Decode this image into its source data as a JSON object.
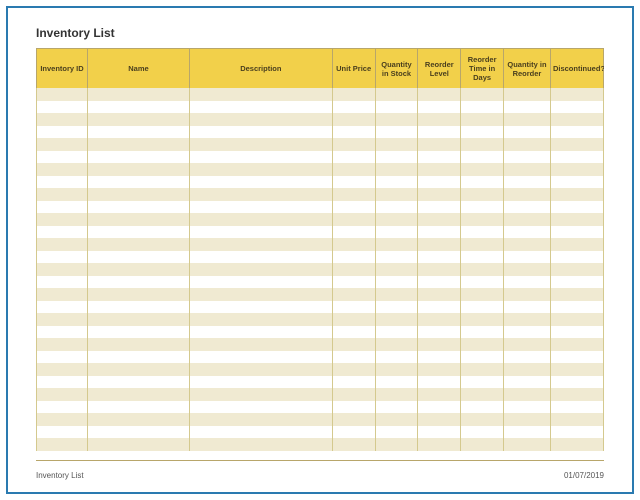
{
  "title": "Inventory List",
  "table": {
    "header_bg": "#f2d04a",
    "row_alt_bg": "#f0ead2",
    "row_bg": "#ffffff",
    "columns": [
      {
        "label": "Inventory ID",
        "width": 50
      },
      {
        "label": "Name",
        "width": 100
      },
      {
        "label": "Description",
        "width": 140
      },
      {
        "label": "Unit Price",
        "width": 42
      },
      {
        "label": "Quantity in Stock",
        "width": 42
      },
      {
        "label": "Reorder Level",
        "width": 42
      },
      {
        "label": "Reorder Time in Days",
        "width": 42
      },
      {
        "label": "Quantity in Reorder",
        "width": 46
      },
      {
        "label": "Discontinued?",
        "width": 52
      }
    ],
    "row_count": 29
  },
  "footer": {
    "left": "Inventory List",
    "right": "01/07/2019"
  }
}
